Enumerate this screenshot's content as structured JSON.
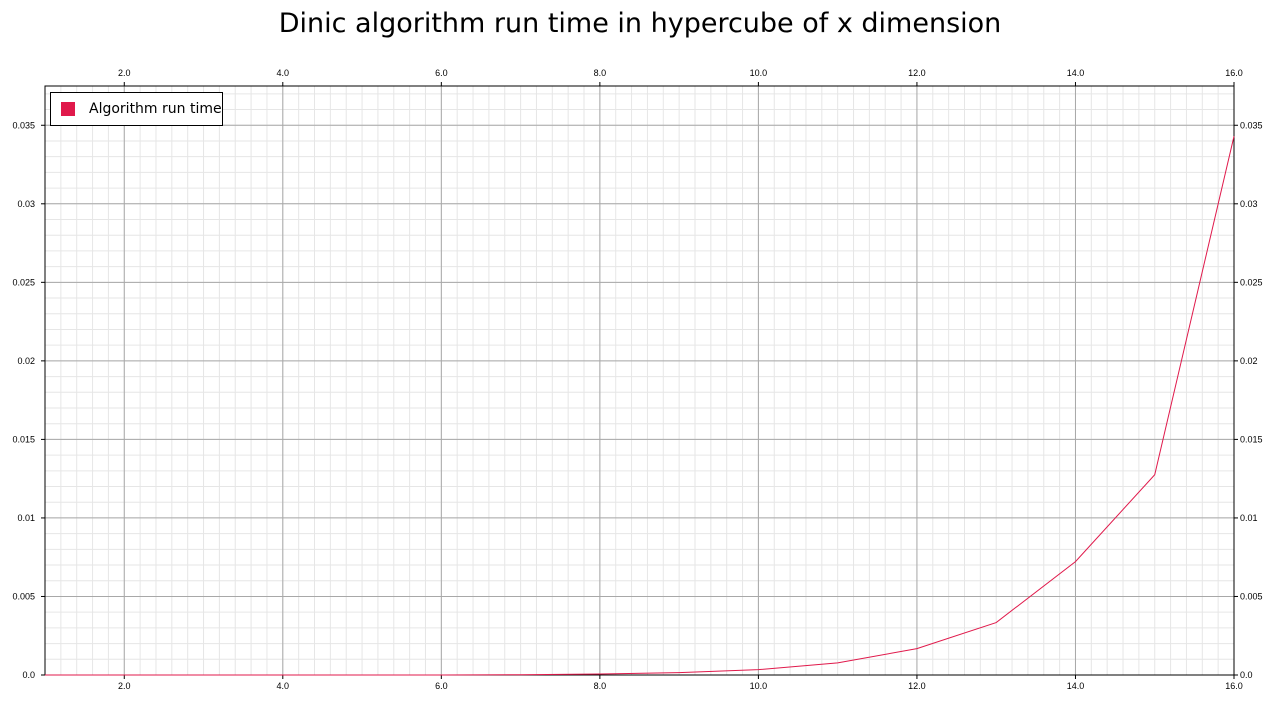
{
  "chart_data": {
    "type": "line",
    "title": "Dinic algorithm run time in hypercube of x dimension",
    "xlabel": "",
    "ylabel": "",
    "xlim": [
      1,
      16
    ],
    "ylim": [
      0,
      0.0375
    ],
    "x_ticks": [
      "2.0",
      "4.0",
      "6.0",
      "8.0",
      "10.0",
      "12.0",
      "14.0",
      "16.0"
    ],
    "y_ticks": [
      "0.0",
      "0.005",
      "0.01",
      "0.015",
      "0.02",
      "0.025",
      "0.03",
      "0.035"
    ],
    "grid": true,
    "legend_position": "top-left",
    "series": [
      {
        "name": "Algorithm run time",
        "color": "#e0194b",
        "x": [
          1,
          2,
          3,
          4,
          5,
          6,
          7,
          8,
          9,
          10,
          11,
          12,
          13,
          14,
          15,
          16
        ],
        "values": [
          0.0,
          0.0,
          0.0,
          0.0,
          0.0,
          0.0,
          2e-05,
          6e-05,
          0.00015,
          0.00034,
          0.00077,
          0.00168,
          0.00334,
          0.00722,
          0.01275,
          0.0343
        ]
      }
    ]
  }
}
